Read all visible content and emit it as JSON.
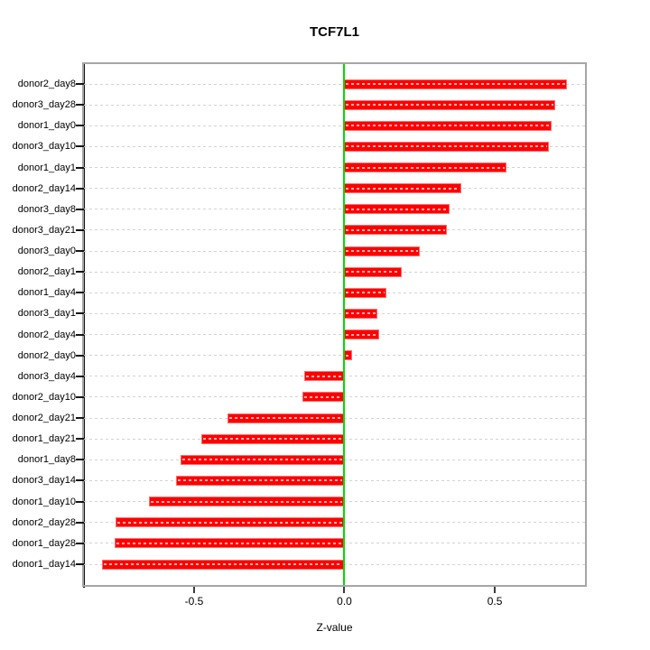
{
  "chart_data": {
    "type": "bar",
    "orientation": "horizontal",
    "title": "TCF7L1",
    "xlabel": "Z-value",
    "ylabel": "",
    "categories": [
      "donor2_day8",
      "donor3_day28",
      "donor1_day0",
      "donor3_day10",
      "donor1_day1",
      "donor2_day14",
      "donor3_day8",
      "donor3_day21",
      "donor3_day0",
      "donor2_day1",
      "donor1_day4",
      "donor3_day1",
      "donor2_day4",
      "donor2_day0",
      "donor3_day4",
      "donor2_day10",
      "donor2_day21",
      "donor1_day21",
      "donor1_day8",
      "donor3_day14",
      "donor1_day10",
      "donor2_day28",
      "donor1_day28",
      "donor1_day14"
    ],
    "values": [
      0.74,
      0.7,
      0.69,
      0.68,
      0.54,
      0.39,
      0.35,
      0.34,
      0.25,
      0.19,
      0.14,
      0.11,
      0.115,
      0.025,
      -0.135,
      -0.14,
      -0.39,
      -0.475,
      -0.545,
      -0.56,
      -0.65,
      -0.76,
      -0.765,
      -0.805
    ],
    "xlim": [
      -0.866,
      0.8
    ],
    "x_ticks": [
      -0.5,
      0.0,
      0.5
    ],
    "x_tick_labels": [
      "-0.5",
      "0.0",
      "0.5"
    ],
    "grid": "dashed horizontal line per category, on",
    "reference_line_x": 0.0,
    "legend": "none",
    "colors": {
      "bar_fill": "#ff0000",
      "bar_edge": "#ff6b6b",
      "zero_line": "#00dd00",
      "grid_line": "#d2d2d2",
      "frame": "#a6a6a6",
      "axis": "#141414",
      "background": "#ffffff",
      "text": "#000000"
    }
  }
}
